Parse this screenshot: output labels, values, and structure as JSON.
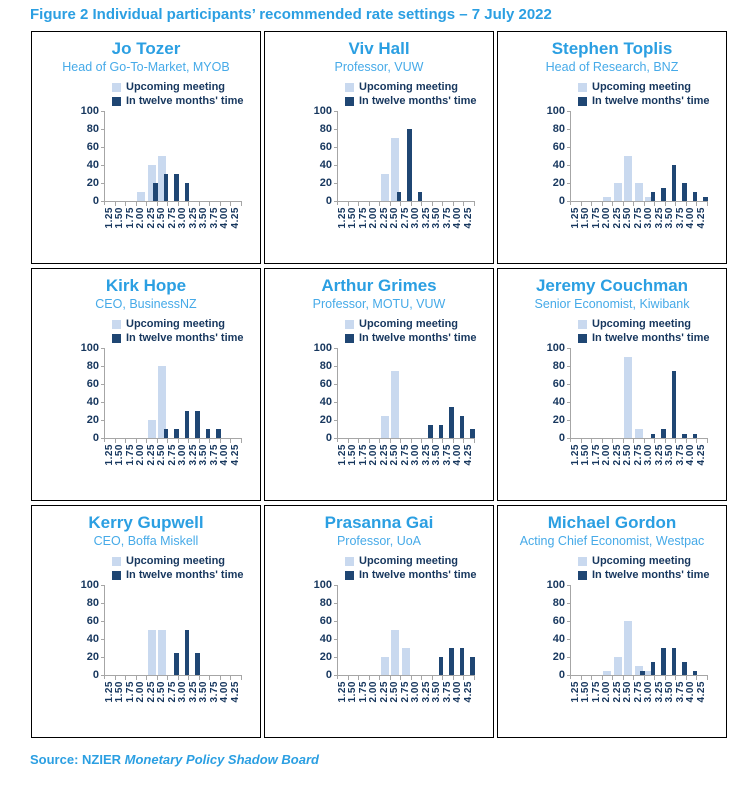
{
  "figure_title": "Figure 2 Individual participants’ recommended rate settings – 7 July 2022",
  "source": {
    "prefix": "Source: NZIER ",
    "italic": "Monetary Policy Shadow Board"
  },
  "colors": {
    "accent_blue": "#2b9fe2",
    "role_blue": "#46aae8",
    "light_bar": "#c9d9ef",
    "dark_bar": "#1f4673",
    "axis_text": "#17375e",
    "axis_line": "#a6a6a6"
  },
  "chart_data": {
    "type": "bar",
    "categories": [
      "1.25",
      "1.50",
      "1.75",
      "2.00",
      "2.25",
      "2.50",
      "2.75",
      "3.00",
      "3.25",
      "3.50",
      "3.75",
      "4.00",
      "4.25"
    ],
    "yticks": [
      0,
      20,
      40,
      60,
      80,
      100
    ],
    "ylim": [
      0,
      100
    ],
    "grid": false,
    "legend_position": "top",
    "legend": [
      "Upcoming meeting",
      "In twelve months' time"
    ],
    "charts": [
      {
        "name": "Jo Tozer",
        "role": "Head of Go-To-Market, MYOB",
        "series": [
          {
            "name": "Upcoming meeting",
            "values": [
              0,
              0,
              0,
              10,
              40,
              50,
              0,
              0,
              0,
              0,
              0,
              0,
              0
            ]
          },
          {
            "name": "In twelve months' time",
            "values": [
              0,
              0,
              0,
              0,
              20,
              30,
              30,
              20,
              0,
              0,
              0,
              0,
              0
            ]
          }
        ]
      },
      {
        "name": "Viv Hall",
        "role": "Professor, VUW",
        "series": [
          {
            "name": "Upcoming meeting",
            "values": [
              0,
              0,
              0,
              0,
              30,
              70,
              0,
              0,
              0,
              0,
              0,
              0,
              0
            ]
          },
          {
            "name": "In twelve months' time",
            "values": [
              0,
              0,
              0,
              0,
              0,
              10,
              80,
              10,
              0,
              0,
              0,
              0,
              0
            ]
          }
        ]
      },
      {
        "name": "Stephen Toplis",
        "role": "Head of Research, BNZ",
        "series": [
          {
            "name": "Upcoming meeting",
            "values": [
              0,
              0,
              0,
              5,
              20,
              50,
              20,
              5,
              0,
              0,
              0,
              0,
              0
            ]
          },
          {
            "name": "In twelve months' time",
            "values": [
              0,
              0,
              0,
              0,
              0,
              0,
              0,
              10,
              15,
              40,
              20,
              10,
              5
            ]
          }
        ]
      },
      {
        "name": "Kirk Hope",
        "role": "CEO, BusinessNZ",
        "series": [
          {
            "name": "Upcoming meeting",
            "values": [
              0,
              0,
              0,
              0,
              20,
              80,
              0,
              0,
              0,
              0,
              0,
              0,
              0
            ]
          },
          {
            "name": "In twelve months' time",
            "values": [
              0,
              0,
              0,
              0,
              0,
              10,
              10,
              30,
              30,
              10,
              10,
              0,
              0
            ]
          }
        ]
      },
      {
        "name": "Arthur Grimes",
        "role": "Professor, MOTU, VUW",
        "series": [
          {
            "name": "Upcoming meeting",
            "values": [
              0,
              0,
              0,
              0,
              25,
              75,
              0,
              0,
              0,
              0,
              0,
              0,
              0
            ]
          },
          {
            "name": "In twelve months' time",
            "values": [
              0,
              0,
              0,
              0,
              0,
              0,
              0,
              0,
              15,
              15,
              35,
              25,
              10
            ]
          }
        ]
      },
      {
        "name": "Jeremy Couchman",
        "role": "Senior Economist, Kiwibank",
        "series": [
          {
            "name": "Upcoming meeting",
            "values": [
              0,
              0,
              0,
              0,
              0,
              90,
              10,
              0,
              0,
              0,
              0,
              0,
              0
            ]
          },
          {
            "name": "In twelve months' time",
            "values": [
              0,
              0,
              0,
              0,
              0,
              0,
              0,
              5,
              10,
              75,
              5,
              5,
              0
            ]
          }
        ]
      },
      {
        "name": "Kerry Gupwell",
        "role": "CEO, Boffa Miskell",
        "series": [
          {
            "name": "Upcoming meeting",
            "values": [
              0,
              0,
              0,
              0,
              50,
              50,
              0,
              0,
              0,
              0,
              0,
              0,
              0
            ]
          },
          {
            "name": "In twelve months' time",
            "values": [
              0,
              0,
              0,
              0,
              0,
              0,
              25,
              50,
              25,
              0,
              0,
              0,
              0
            ]
          }
        ]
      },
      {
        "name": "Prasanna Gai",
        "role": "Professor, UoA",
        "series": [
          {
            "name": "Upcoming meeting",
            "values": [
              0,
              0,
              0,
              0,
              20,
              50,
              30,
              0,
              0,
              0,
              0,
              0,
              0
            ]
          },
          {
            "name": "In twelve months' time",
            "values": [
              0,
              0,
              0,
              0,
              0,
              0,
              0,
              0,
              0,
              20,
              30,
              30,
              20
            ]
          }
        ]
      },
      {
        "name": "Michael Gordon",
        "role": "Acting Chief Economist, Westpac",
        "series": [
          {
            "name": "Upcoming meeting",
            "values": [
              0,
              0,
              0,
              5,
              20,
              60,
              10,
              5,
              0,
              0,
              0,
              0,
              0
            ]
          },
          {
            "name": "In twelve months' time",
            "values": [
              0,
              0,
              0,
              0,
              0,
              0,
              5,
              15,
              30,
              30,
              15,
              5,
              0
            ]
          }
        ]
      }
    ]
  }
}
